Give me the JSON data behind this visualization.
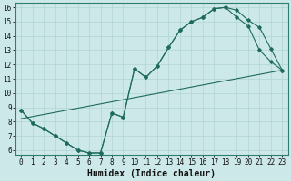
{
  "xlabel": "Humidex (Indice chaleur)",
  "bg_color": "#cce8e8",
  "grid_color": "#b0d4d4",
  "line_color": "#1e6b5e",
  "xlim": [
    -0.5,
    23.5
  ],
  "ylim": [
    5.7,
    16.3
  ],
  "xticks": [
    0,
    1,
    2,
    3,
    4,
    5,
    6,
    7,
    8,
    9,
    10,
    11,
    12,
    13,
    14,
    15,
    16,
    17,
    18,
    19,
    20,
    21,
    22,
    23
  ],
  "yticks": [
    6,
    7,
    8,
    9,
    10,
    11,
    12,
    13,
    14,
    15,
    16
  ],
  "line1_x": [
    0,
    1,
    2,
    3,
    4,
    5,
    6,
    7,
    8,
    9,
    10,
    11,
    12,
    13,
    14,
    15,
    16,
    17,
    18,
    19,
    20,
    21,
    22,
    23
  ],
  "line1_y": [
    8.8,
    7.9,
    7.5,
    7.0,
    6.5,
    6.0,
    5.8,
    5.8,
    8.6,
    8.3,
    11.7,
    11.1,
    11.9,
    13.2,
    14.4,
    15.0,
    15.3,
    15.9,
    16.0,
    15.8,
    15.1,
    14.6,
    13.1,
    11.6
  ],
  "line2_x": [
    0,
    1,
    2,
    3,
    4,
    5,
    6,
    7,
    8,
    9,
    10,
    11,
    12,
    13,
    14,
    15,
    16,
    17,
    18,
    19,
    20,
    21,
    22,
    23
  ],
  "line2_y": [
    8.8,
    7.9,
    7.5,
    7.0,
    6.5,
    6.0,
    5.8,
    5.8,
    8.6,
    8.3,
    11.7,
    11.1,
    11.9,
    13.2,
    14.4,
    15.0,
    15.3,
    15.9,
    16.0,
    15.3,
    14.7,
    13.0,
    12.2,
    11.6
  ],
  "line3_x": [
    0,
    23
  ],
  "line3_y": [
    8.2,
    11.6
  ],
  "xlabel_fontsize": 7,
  "tick_fontsize": 5.5
}
